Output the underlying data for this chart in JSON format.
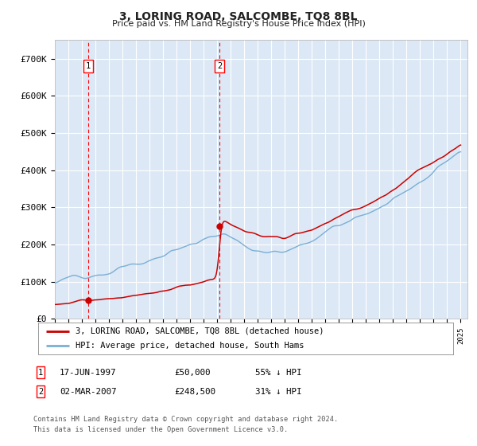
{
  "title": "3, LORING ROAD, SALCOMBE, TQ8 8BL",
  "subtitle": "Price paid vs. HM Land Registry's House Price Index (HPI)",
  "ylim": [
    0,
    750000
  ],
  "yticks": [
    0,
    100000,
    200000,
    300000,
    400000,
    500000,
    600000,
    700000
  ],
  "ytick_labels": [
    "£0",
    "£100K",
    "£200K",
    "£300K",
    "£400K",
    "£500K",
    "£600K",
    "£700K"
  ],
  "xlim_start": 1995.0,
  "xlim_end": 2025.5,
  "fig_bg_color": "#ffffff",
  "plot_bg_color": "#dce8f5",
  "grid_color": "#ffffff",
  "transaction1_year": 1997.46,
  "transaction1_price": 50000,
  "transaction2_year": 2007.17,
  "transaction2_price": 248500,
  "legend_entries": [
    "3, LORING ROAD, SALCOMBE, TQ8 8BL (detached house)",
    "HPI: Average price, detached house, South Hams"
  ],
  "footnote3": "Contains HM Land Registry data © Crown copyright and database right 2024.",
  "footnote4": "This data is licensed under the Open Government Licence v3.0.",
  "red_color": "#cc0000",
  "blue_color": "#7aafd4"
}
